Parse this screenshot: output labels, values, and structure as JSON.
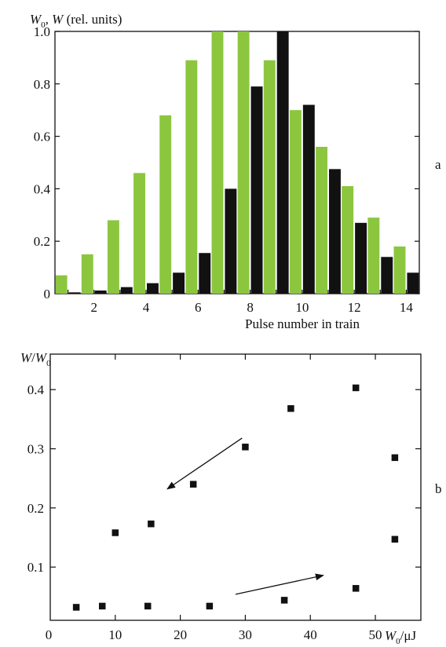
{
  "chart_data": [
    {
      "panel": "a",
      "type": "bar",
      "ylabel": "W0, W (rel. units)",
      "ylabel_parts": {
        "w0": "W",
        "w0_sub": "0",
        "sep": ", ",
        "w": "W",
        "units": " (rel. units)"
      },
      "xlabel": "Pulse number in train",
      "xlim": [
        0.5,
        14.5
      ],
      "ylim": [
        0,
        1.0
      ],
      "x_ticks": [
        2,
        4,
        6,
        8,
        10,
        12,
        14
      ],
      "y_ticks": [
        "0",
        "0.2",
        "0.4",
        "0.6",
        "0.8",
        "1.0"
      ],
      "categories": [
        1,
        2,
        3,
        4,
        5,
        6,
        7,
        8,
        9,
        10,
        11,
        12,
        13,
        14
      ],
      "series": [
        {
          "name": "W0",
          "color": "#8cc63f",
          "values": [
            0.07,
            0.15,
            0.28,
            0.46,
            0.68,
            0.89,
            1.0,
            1.0,
            0.89,
            0.7,
            0.56,
            0.41,
            0.29,
            0.18
          ]
        },
        {
          "name": "W",
          "color": "#111111",
          "values": [
            0.005,
            0.012,
            0.025,
            0.04,
            0.08,
            0.155,
            0.4,
            0.79,
            1.0,
            0.72,
            0.475,
            0.27,
            0.14,
            0.08
          ]
        }
      ]
    },
    {
      "panel": "b",
      "type": "scatter",
      "ylabel": "W/W0",
      "ylabel_parts": {
        "w": "W",
        "slash": "/",
        "w0": "W",
        "w0_sub": "0"
      },
      "xlabel": "W0/μJ",
      "xlabel_parts": {
        "w0": "W",
        "w0_sub": "0",
        "units": "/μJ"
      },
      "xlim": [
        0,
        57
      ],
      "ylim": [
        0.01,
        0.46
      ],
      "x_ticks": [
        "0",
        "10",
        "20",
        "30",
        "40",
        "50"
      ],
      "y_ticks": [
        "0.1",
        "0.2",
        "0.3",
        "0.4"
      ],
      "points": [
        {
          "x": 4,
          "y": 0.032
        },
        {
          "x": 8,
          "y": 0.034
        },
        {
          "x": 10,
          "y": 0.158
        },
        {
          "x": 15,
          "y": 0.034
        },
        {
          "x": 15.5,
          "y": 0.173
        },
        {
          "x": 22,
          "y": 0.24
        },
        {
          "x": 24.5,
          "y": 0.034
        },
        {
          "x": 30,
          "y": 0.303
        },
        {
          "x": 36,
          "y": 0.044
        },
        {
          "x": 37,
          "y": 0.368
        },
        {
          "x": 47,
          "y": 0.064
        },
        {
          "x": 47,
          "y": 0.403
        },
        {
          "x": 53,
          "y": 0.285
        },
        {
          "x": 53,
          "y": 0.147
        }
      ],
      "annotations": [
        {
          "kind": "arrow",
          "direction": "toward lower-left",
          "from": {
            "x": 29.5,
            "y": 0.318
          },
          "to": {
            "x": 18,
            "y": 0.232
          }
        },
        {
          "kind": "arrow",
          "direction": "toward upper-right",
          "from": {
            "x": 28.5,
            "y": 0.054
          },
          "to": {
            "x": 42,
            "y": 0.086
          }
        }
      ],
      "marker": "square",
      "color": "#111111"
    }
  ]
}
